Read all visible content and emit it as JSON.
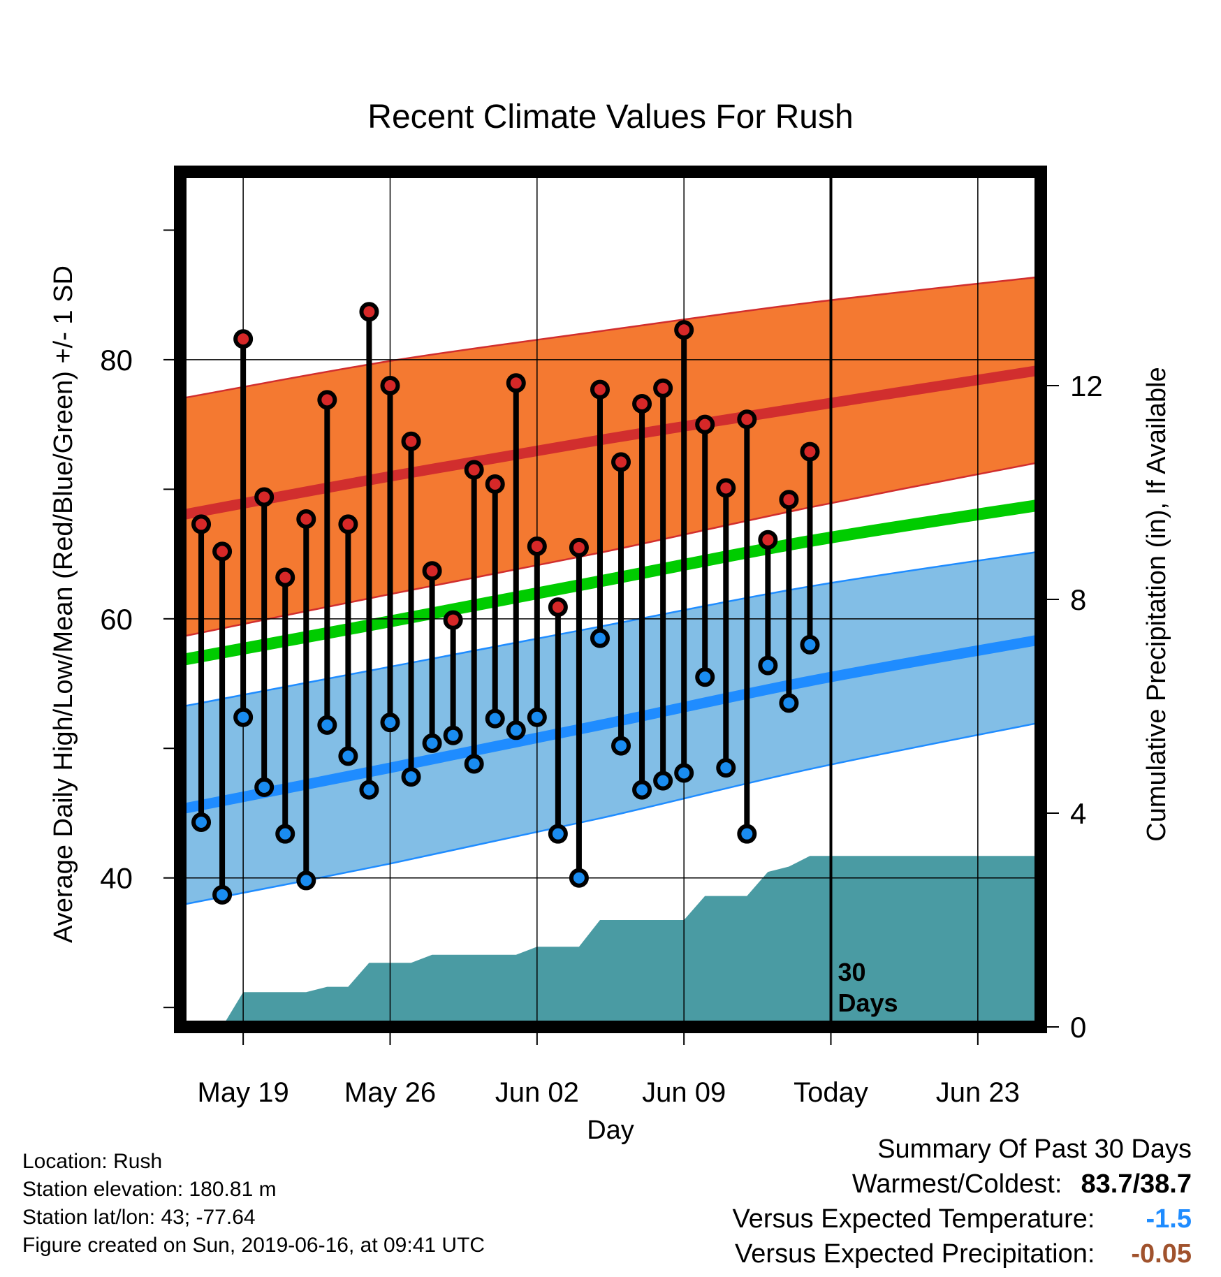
{
  "chart_data": {
    "type": "line",
    "title": "Recent Climate Values For Rush",
    "xlabel": "Day",
    "ylabel_left": "Average Daily High/Low/Mean (Red/Blue/Green) +/- 1 SD",
    "ylabel_right": "Cumulative Precipitation (in), If Available",
    "x_tick_labels": [
      "May 19",
      "May 26",
      "Jun 02",
      "Jun 09",
      "Today",
      "Jun 23"
    ],
    "x_range": [
      "2019-05-16",
      "2019-06-26"
    ],
    "today": "2019-06-16",
    "today_annotation": [
      "30",
      "Days"
    ],
    "ylim_left": [
      28.5,
      94.5
    ],
    "yticks_left": [
      40,
      60,
      80
    ],
    "ylim_right": [
      0,
      16
    ],
    "yticks_right": [
      0,
      4,
      8,
      12
    ],
    "grid": true,
    "observed": {
      "dates": [
        "2019-05-17",
        "2019-05-18",
        "2019-05-19",
        "2019-05-20",
        "2019-05-21",
        "2019-05-22",
        "2019-05-23",
        "2019-05-24",
        "2019-05-25",
        "2019-05-26",
        "2019-05-27",
        "2019-05-28",
        "2019-05-29",
        "2019-05-30",
        "2019-05-31",
        "2019-06-01",
        "2019-06-02",
        "2019-06-03",
        "2019-06-04",
        "2019-06-05",
        "2019-06-06",
        "2019-06-07",
        "2019-06-08",
        "2019-06-09",
        "2019-06-10",
        "2019-06-11",
        "2019-06-12",
        "2019-06-13",
        "2019-06-14",
        "2019-06-15"
      ],
      "high": [
        67.3,
        65.2,
        81.6,
        69.4,
        63.2,
        67.7,
        76.9,
        67.3,
        83.7,
        78.0,
        73.7,
        63.7,
        59.9,
        71.5,
        70.4,
        78.2,
        65.6,
        60.9,
        65.5,
        77.7,
        72.1,
        76.6,
        77.8,
        82.3,
        75.0,
        70.1,
        75.4,
        66.1,
        69.2,
        72.9
      ],
      "low": [
        44.3,
        38.7,
        52.4,
        47.0,
        43.4,
        39.8,
        51.8,
        49.4,
        46.8,
        52.0,
        47.8,
        50.4,
        51.0,
        48.8,
        52.3,
        51.4,
        52.4,
        43.4,
        40.0,
        58.5,
        50.2,
        46.8,
        47.5,
        48.1,
        55.5,
        48.5,
        43.4,
        56.4,
        53.5,
        58.0
      ]
    },
    "normals": {
      "dates": [
        "2019-05-16",
        "2019-05-26",
        "2019-06-05",
        "2019-06-15",
        "2019-06-26"
      ],
      "high_mean": [
        68.0,
        71.0,
        73.8,
        76.4,
        79.2
      ],
      "high_upper": [
        77.0,
        79.9,
        82.2,
        84.4,
        86.4
      ],
      "high_lower": [
        58.6,
        61.9,
        65.1,
        68.6,
        72.1
      ],
      "mean": [
        56.8,
        59.8,
        62.9,
        66.0,
        68.8
      ],
      "low_mean": [
        45.3,
        48.5,
        51.8,
        55.2,
        58.4
      ],
      "low_upper": [
        53.2,
        56.3,
        59.4,
        62.5,
        65.2
      ],
      "low_lower": [
        37.9,
        41.1,
        44.6,
        48.4,
        52.0
      ]
    },
    "precipitation": {
      "dates": [
        "2019-05-17",
        "2019-05-18",
        "2019-05-19",
        "2019-05-20",
        "2019-05-21",
        "2019-05-22",
        "2019-05-23",
        "2019-05-24",
        "2019-05-25",
        "2019-05-26",
        "2019-05-27",
        "2019-05-28",
        "2019-05-29",
        "2019-05-30",
        "2019-05-31",
        "2019-06-01",
        "2019-06-02",
        "2019-06-03",
        "2019-06-04",
        "2019-06-05",
        "2019-06-06",
        "2019-06-07",
        "2019-06-08",
        "2019-06-09",
        "2019-06-10",
        "2019-06-11",
        "2019-06-12",
        "2019-06-13",
        "2019-06-14",
        "2019-06-15",
        "2019-06-16",
        "2019-06-26"
      ],
      "cumulative": [
        0.0,
        0.0,
        0.65,
        0.65,
        0.65,
        0.65,
        0.75,
        0.75,
        1.2,
        1.2,
        1.2,
        1.35,
        1.35,
        1.35,
        1.35,
        1.35,
        1.5,
        1.5,
        1.5,
        2.0,
        2.0,
        2.0,
        2.0,
        2.0,
        2.45,
        2.45,
        2.45,
        2.9,
        3.0,
        3.2,
        3.2,
        3.2
      ]
    },
    "colors": {
      "high_band": "#f47931",
      "high_line": "#d12e2e",
      "low_band": "#82bee6",
      "low_line": "#1f8cff",
      "mean_line": "#00cc00",
      "precip_fill": "#4a9ba3",
      "high_marker": "#d62828",
      "low_marker": "#1a8cf0"
    }
  },
  "footer": {
    "location": "Location: Rush",
    "elevation": "Station elevation: 180.81 m",
    "latlon": "Station lat/lon: 43; -77.64",
    "created": "Figure created on Sun, 2019-06-16, at 09:41 UTC"
  },
  "summary": {
    "title": "Summary Of Past 30 Days",
    "warmest_label": "Warmest/Coldest:",
    "warmest_value": "83.7/38.7",
    "temp_label": "Versus Expected Temperature:",
    "temp_value": "-1.5",
    "temp_color": "#1f8cff",
    "precip_label": "Versus Expected Precipitation:",
    "precip_value": "-0.05",
    "precip_color": "#a0522d"
  }
}
